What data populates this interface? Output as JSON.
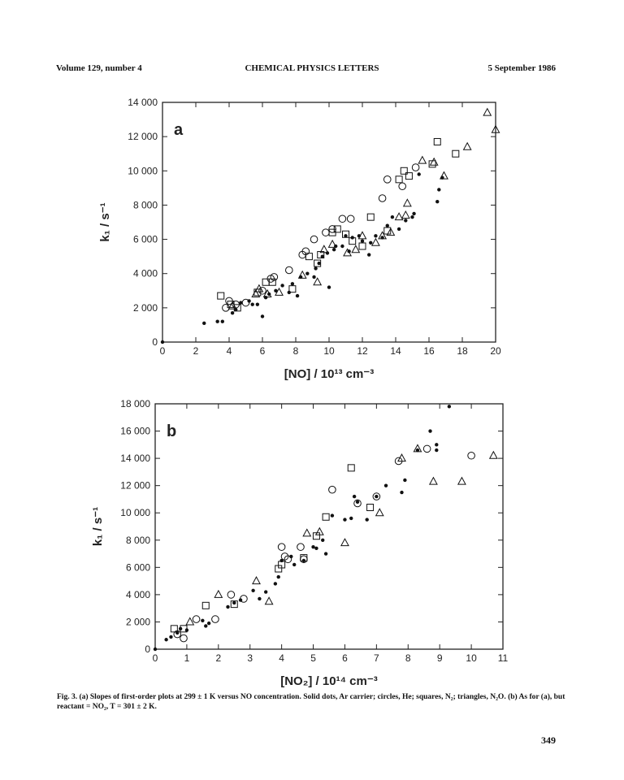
{
  "header": {
    "left": "Volume 129, number 4",
    "center": "CHEMICAL PHYSICS LETTERS",
    "right": "5 September 1986"
  },
  "caption": "Fig. 3. (a) Slopes of first-order plots at 299 ± 1 K versus NO concentration. Solid dots, Ar carrier; circles, He; squares, N₂; triangles, N₂O. (b) As for (a), but reactant = NO₂, T = 301 ± 2 K.",
  "page_number": "349",
  "chart_data": [
    {
      "type": "scatter",
      "panel": "a",
      "xlabel": "[NO] / 10¹³ cm⁻³",
      "ylabel": "k₁ / s⁻¹",
      "xlim": [
        0,
        20
      ],
      "ylim": [
        0,
        14000
      ],
      "xticks": [
        0,
        2,
        4,
        6,
        8,
        10,
        12,
        14,
        16,
        18,
        20
      ],
      "yticks": [
        0,
        2000,
        4000,
        6000,
        8000,
        10000,
        12000,
        14000
      ],
      "ytick_labels": [
        "0",
        "2 000",
        "4 000",
        "6 000",
        "8 000",
        "10 000",
        "12 000",
        "14 000"
      ],
      "series": [
        {
          "marker": "dot",
          "points": [
            [
              0,
              0
            ],
            [
              2.5,
              1100
            ],
            [
              3.3,
              1200
            ],
            [
              3.6,
              1200
            ],
            [
              4.2,
              1700
            ],
            [
              4.4,
              1900
            ],
            [
              4.7,
              2300
            ],
            [
              5.2,
              2400
            ],
            [
              5.4,
              2200
            ],
            [
              5.7,
              2200
            ],
            [
              6.0,
              1500
            ],
            [
              6.2,
              2600
            ],
            [
              6.4,
              2800
            ],
            [
              6.8,
              3000
            ],
            [
              7.2,
              3300
            ],
            [
              7.6,
              2900
            ],
            [
              7.8,
              3400
            ],
            [
              8.1,
              2700
            ],
            [
              8.3,
              3800
            ],
            [
              8.7,
              4000
            ],
            [
              9.1,
              3800
            ],
            [
              9.2,
              4300
            ],
            [
              9.4,
              4600
            ],
            [
              9.6,
              5000
            ],
            [
              9.9,
              5200
            ],
            [
              10.0,
              3200
            ],
            [
              10.3,
              5400
            ],
            [
              10.4,
              5600
            ],
            [
              10.8,
              5600
            ],
            [
              11.0,
              6200
            ],
            [
              11.2,
              5300
            ],
            [
              11.4,
              6100
            ],
            [
              11.8,
              6200
            ],
            [
              12.0,
              5900
            ],
            [
              12.4,
              5100
            ],
            [
              12.5,
              5800
            ],
            [
              12.8,
              6200
            ],
            [
              13.2,
              6100
            ],
            [
              13.5,
              6800
            ],
            [
              13.8,
              7300
            ],
            [
              14.2,
              6600
            ],
            [
              14.6,
              7100
            ],
            [
              15.0,
              7300
            ],
            [
              15.1,
              7500
            ],
            [
              15.4,
              9800
            ],
            [
              16.5,
              8200
            ],
            [
              16.6,
              8900
            ],
            [
              16.8,
              9600
            ]
          ]
        },
        {
          "marker": "circle",
          "points": [
            [
              3.8,
              2000
            ],
            [
              4.0,
              2400
            ],
            [
              4.4,
              2200
            ],
            [
              5.0,
              2300
            ],
            [
              6.0,
              3000
            ],
            [
              6.5,
              3700
            ],
            [
              6.7,
              3800
            ],
            [
              7.6,
              4200
            ],
            [
              8.4,
              5100
            ],
            [
              8.6,
              5300
            ],
            [
              9.1,
              6000
            ],
            [
              9.8,
              6400
            ],
            [
              10.2,
              6600
            ],
            [
              10.8,
              7200
            ],
            [
              11.3,
              7200
            ],
            [
              13.2,
              8400
            ],
            [
              13.5,
              9500
            ],
            [
              14.4,
              9100
            ],
            [
              15.2,
              10200
            ]
          ]
        },
        {
          "marker": "square",
          "points": [
            [
              3.5,
              2700
            ],
            [
              4.1,
              2200
            ],
            [
              4.5,
              2000
            ],
            [
              5.7,
              2900
            ],
            [
              6.2,
              3500
            ],
            [
              6.6,
              3500
            ],
            [
              7.8,
              3100
            ],
            [
              8.8,
              5000
            ],
            [
              9.3,
              4600
            ],
            [
              9.5,
              5100
            ],
            [
              10.2,
              6400
            ],
            [
              10.5,
              6600
            ],
            [
              11.0,
              6300
            ],
            [
              11.4,
              5900
            ],
            [
              12.0,
              5600
            ],
            [
              12.5,
              7300
            ],
            [
              13.5,
              6500
            ],
            [
              14.2,
              9500
            ],
            [
              14.5,
              10000
            ],
            [
              14.8,
              9700
            ],
            [
              16.2,
              10400
            ],
            [
              16.5,
              11700
            ],
            [
              17.6,
              11000
            ]
          ]
        },
        {
          "marker": "triangle",
          "points": [
            [
              4.2,
              2100
            ],
            [
              5.6,
              2800
            ],
            [
              5.8,
              3100
            ],
            [
              6.3,
              2800
            ],
            [
              7.0,
              2900
            ],
            [
              8.4,
              3900
            ],
            [
              9.3,
              3500
            ],
            [
              9.7,
              5400
            ],
            [
              10.2,
              5700
            ],
            [
              11.1,
              5200
            ],
            [
              11.6,
              5400
            ],
            [
              12.0,
              6200
            ],
            [
              12.8,
              5800
            ],
            [
              13.2,
              6200
            ],
            [
              13.7,
              6400
            ],
            [
              14.2,
              7300
            ],
            [
              14.6,
              7400
            ],
            [
              14.7,
              8100
            ],
            [
              15.6,
              10600
            ],
            [
              16.3,
              10500
            ],
            [
              16.9,
              9700
            ],
            [
              18.3,
              11400
            ],
            [
              19.5,
              13400
            ],
            [
              20.0,
              12400
            ]
          ]
        }
      ]
    },
    {
      "type": "scatter",
      "panel": "b",
      "xlabel": "[NO₂] / 10¹⁴ cm⁻³",
      "ylabel": "k₁ / s⁻¹",
      "xlim": [
        0,
        11
      ],
      "ylim": [
        0,
        18000
      ],
      "xticks": [
        0,
        1,
        2,
        3,
        4,
        5,
        6,
        7,
        8,
        9,
        10,
        11
      ],
      "yticks": [
        0,
        2000,
        4000,
        6000,
        8000,
        10000,
        12000,
        14000,
        16000,
        18000
      ],
      "ytick_labels": [
        "0",
        "2 000",
        "4 000",
        "6 000",
        "8 000",
        "10 000",
        "12 000",
        "14 000",
        "16 000",
        "18 000"
      ],
      "series": [
        {
          "marker": "dot",
          "points": [
            [
              0,
              0
            ],
            [
              0.35,
              700
            ],
            [
              0.5,
              900
            ],
            [
              0.7,
              1200
            ],
            [
              0.8,
              1500
            ],
            [
              1.0,
              1400
            ],
            [
              1.5,
              2100
            ],
            [
              1.6,
              1700
            ],
            [
              1.7,
              1900
            ],
            [
              2.3,
              3100
            ],
            [
              2.5,
              3400
            ],
            [
              2.7,
              3600
            ],
            [
              3.1,
              4300
            ],
            [
              3.3,
              3700
            ],
            [
              3.5,
              4200
            ],
            [
              3.8,
              4800
            ],
            [
              3.9,
              5300
            ],
            [
              4.0,
              6500
            ],
            [
              4.3,
              6800
            ],
            [
              4.4,
              6200
            ],
            [
              4.7,
              6500
            ],
            [
              5.0,
              7500
            ],
            [
              5.1,
              7400
            ],
            [
              5.3,
              8000
            ],
            [
              5.4,
              7000
            ],
            [
              5.6,
              9800
            ],
            [
              6.0,
              9500
            ],
            [
              6.2,
              9600
            ],
            [
              6.3,
              11200
            ],
            [
              6.4,
              10800
            ],
            [
              6.7,
              9500
            ],
            [
              7.0,
              11200
            ],
            [
              7.3,
              12000
            ],
            [
              7.8,
              11500
            ],
            [
              7.9,
              12400
            ],
            [
              8.3,
              14600
            ],
            [
              8.7,
              16000
            ],
            [
              8.9,
              15000
            ],
            [
              8.9,
              14600
            ],
            [
              9.3,
              17800
            ]
          ]
        },
        {
          "marker": "circle",
          "points": [
            [
              0.7,
              1100
            ],
            [
              0.9,
              800
            ],
            [
              1.3,
              2200
            ],
            [
              1.9,
              2200
            ],
            [
              2.4,
              4000
            ],
            [
              2.8,
              3700
            ],
            [
              4.0,
              7500
            ],
            [
              4.1,
              6800
            ],
            [
              4.2,
              6600
            ],
            [
              4.6,
              7500
            ],
            [
              4.7,
              6600
            ],
            [
              5.6,
              11700
            ],
            [
              6.4,
              10700
            ],
            [
              7.0,
              11200
            ],
            [
              7.7,
              13800
            ],
            [
              8.6,
              14700
            ],
            [
              10.0,
              14200
            ]
          ]
        },
        {
          "marker": "square",
          "points": [
            [
              0.6,
              1500
            ],
            [
              0.9,
              1500
            ],
            [
              1.6,
              3200
            ],
            [
              2.5,
              3300
            ],
            [
              3.9,
              5900
            ],
            [
              4.0,
              6200
            ],
            [
              4.7,
              6700
            ],
            [
              5.1,
              8300
            ],
            [
              5.4,
              9700
            ],
            [
              6.2,
              13300
            ],
            [
              6.8,
              10400
            ]
          ]
        },
        {
          "marker": "triangle",
          "points": [
            [
              1.1,
              2000
            ],
            [
              2.0,
              4000
            ],
            [
              3.2,
              5000
            ],
            [
              3.6,
              3500
            ],
            [
              4.8,
              8500
            ],
            [
              5.2,
              8600
            ],
            [
              6.0,
              7800
            ],
            [
              7.1,
              10000
            ],
            [
              7.8,
              14000
            ],
            [
              8.3,
              14700
            ],
            [
              8.8,
              12300
            ],
            [
              9.7,
              12300
            ],
            [
              10.7,
              14200
            ]
          ]
        }
      ]
    }
  ]
}
